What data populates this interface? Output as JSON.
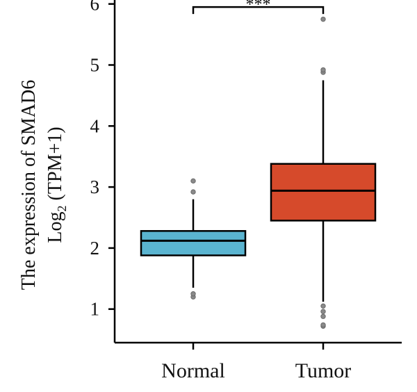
{
  "chart_data": {
    "type": "boxplot",
    "title": "",
    "ylabel_line1": "The expression of SMAD6",
    "ylabel_line2_prefix": "Log",
    "ylabel_line2_sub": "2",
    "ylabel_line2_suffix": " (TPM+1)",
    "xlabel": "",
    "ylim": [
      0.45,
      6.2
    ],
    "yticks": [
      1,
      2,
      3,
      4,
      5,
      6
    ],
    "ytick_labels": [
      "1",
      "2",
      "3",
      "4",
      "5",
      "6"
    ],
    "grid": false,
    "categories": [
      "Normal",
      "Tumor"
    ],
    "colors": [
      "#5ab4d0",
      "#d64a2b"
    ],
    "boxes": [
      {
        "name": "Normal",
        "q1": 1.88,
        "median": 2.12,
        "q3": 2.28,
        "whisker_low": 1.35,
        "whisker_high": 2.8,
        "outliers": [
          1.2,
          1.25,
          2.92,
          3.1
        ]
      },
      {
        "name": "Tumor",
        "q1": 2.45,
        "median": 2.94,
        "q3": 3.38,
        "whisker_low": 1.12,
        "whisker_high": 4.75,
        "outliers": [
          0.72,
          0.74,
          0.88,
          0.96,
          1.05,
          4.88,
          4.92,
          5.75
        ]
      }
    ],
    "significance": {
      "label": "***",
      "between": [
        0,
        1
      ],
      "y": 5.95
    }
  }
}
